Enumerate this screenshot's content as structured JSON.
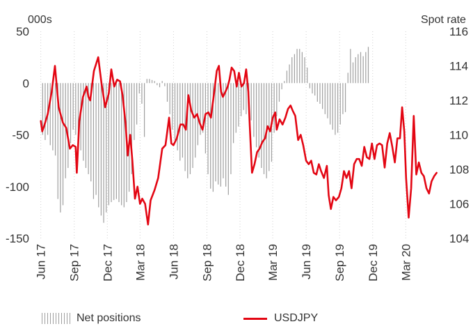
{
  "chart_data": {
    "type": "bar+line",
    "left_unit": "000s",
    "right_unit": "Spot rate",
    "x_tick_labels": [
      "Jun 17",
      "Sep 17",
      "Dec 17",
      "Mar 18",
      "Jun 18",
      "Sep 18",
      "Dec 18",
      "Mar 19",
      "Jun 19",
      "Sep 19",
      "Dec 19",
      "Mar 20"
    ],
    "y_left_ticks": [
      "50",
      "0",
      "-50",
      "-100",
      "-150"
    ],
    "y_right_ticks": [
      "116",
      "114",
      "112",
      "110",
      "108",
      "106",
      "104"
    ],
    "y_left_range": [
      -150,
      50
    ],
    "y_right_range": [
      104,
      116
    ],
    "grid": "vertical dotted",
    "legend_placement": "bottom",
    "series": [
      {
        "name": "Net positions",
        "kind": "bar",
        "axis": "left",
        "color": "#9e9e9e",
        "values": [
          -50,
          -55,
          -50,
          -60,
          -65,
          -70,
          -112,
          -125,
          -118,
          -92,
          -82,
          -58,
          -45,
          -50,
          -58,
          -65,
          -75,
          -82,
          -88,
          -95,
          -112,
          -108,
          -120,
          -128,
          -135,
          -125,
          -118,
          -115,
          -113,
          -112,
          -115,
          -118,
          -120,
          -115,
          -105,
          -88,
          -55,
          -40,
          -10,
          -20,
          -52,
          4,
          4,
          3,
          2,
          -2,
          -4,
          2,
          -3,
          -18,
          -30,
          -45,
          -55,
          -65,
          -75,
          -72,
          -85,
          -92,
          -88,
          -82,
          -72,
          -60,
          -50,
          -48,
          -68,
          -88,
          -102,
          -105,
          -95,
          -98,
          -100,
          -92,
          -100,
          -108,
          -88,
          -58,
          -48,
          -42,
          -32,
          -26,
          -30,
          -22,
          -36,
          -52,
          -62,
          -72,
          -82,
          -88,
          -92,
          -85,
          -76,
          -48,
          -32,
          -18,
          -6,
          2,
          12,
          18,
          25,
          28,
          33,
          33,
          30,
          25,
          15,
          -5,
          -10,
          -12,
          -18,
          -20,
          -25,
          -30,
          -34,
          -40,
          -45,
          -50,
          -48,
          -40,
          -30,
          -28,
          10,
          33,
          20,
          25,
          28,
          30,
          26,
          30,
          35
        ],
        "bar_start_date": "2017-06-06",
        "bar_interval_days": 7
      },
      {
        "name": "USDJPY",
        "kind": "line",
        "axis": "right",
        "color": "#e30613",
        "points": [
          [
            "2017-06-01",
            110.8
          ],
          [
            "2017-06-05",
            110.2
          ],
          [
            "2017-06-10",
            110.5
          ],
          [
            "2017-06-20",
            111.2
          ],
          [
            "2017-07-01",
            112.5
          ],
          [
            "2017-07-10",
            114.0
          ],
          [
            "2017-07-20",
            111.6
          ],
          [
            "2017-08-01",
            110.7
          ],
          [
            "2017-08-10",
            110.4
          ],
          [
            "2017-08-20",
            109.2
          ],
          [
            "2017-08-28",
            109.4
          ],
          [
            "2017-09-05",
            109.3
          ],
          [
            "2017-09-08",
            107.8
          ],
          [
            "2017-09-15",
            110.8
          ],
          [
            "2017-09-25",
            112.2
          ],
          [
            "2017-10-05",
            112.8
          ],
          [
            "2017-10-10",
            112.2
          ],
          [
            "2017-10-15",
            112.0
          ],
          [
            "2017-10-25",
            113.7
          ],
          [
            "2017-11-06",
            114.5
          ],
          [
            "2017-11-15",
            113.0
          ],
          [
            "2017-11-25",
            111.6
          ],
          [
            "2017-12-05",
            112.4
          ],
          [
            "2017-12-12",
            113.8
          ],
          [
            "2017-12-20",
            112.8
          ],
          [
            "2017-12-28",
            113.2
          ],
          [
            "2018-01-05",
            113.1
          ],
          [
            "2018-01-12",
            112.3
          ],
          [
            "2018-01-20",
            110.7
          ],
          [
            "2018-01-26",
            108.8
          ],
          [
            "2018-02-02",
            110.0
          ],
          [
            "2018-02-08",
            108.5
          ],
          [
            "2018-02-15",
            106.3
          ],
          [
            "2018-02-22",
            107.0
          ],
          [
            "2018-03-01",
            106.0
          ],
          [
            "2018-03-07",
            106.3
          ],
          [
            "2018-03-15",
            106.0
          ],
          [
            "2018-03-23",
            104.8
          ],
          [
            "2018-03-30",
            106.2
          ],
          [
            "2018-04-10",
            106.8
          ],
          [
            "2018-04-20",
            107.5
          ],
          [
            "2018-05-01",
            109.2
          ],
          [
            "2018-05-10",
            109.4
          ],
          [
            "2018-05-20",
            111.0
          ],
          [
            "2018-05-26",
            109.5
          ],
          [
            "2018-06-01",
            109.4
          ],
          [
            "2018-06-10",
            109.8
          ],
          [
            "2018-06-20",
            110.6
          ],
          [
            "2018-06-28",
            110.6
          ],
          [
            "2018-07-05",
            110.3
          ],
          [
            "2018-07-12",
            112.3
          ],
          [
            "2018-07-20",
            111.4
          ],
          [
            "2018-07-28",
            111.0
          ],
          [
            "2018-08-05",
            111.2
          ],
          [
            "2018-08-12",
            110.7
          ],
          [
            "2018-08-20",
            110.3
          ],
          [
            "2018-08-28",
            111.2
          ],
          [
            "2018-09-05",
            111.3
          ],
          [
            "2018-09-12",
            111.0
          ],
          [
            "2018-09-20",
            112.3
          ],
          [
            "2018-09-28",
            113.7
          ],
          [
            "2018-10-04",
            114.0
          ],
          [
            "2018-10-10",
            112.5
          ],
          [
            "2018-10-15",
            112.2
          ],
          [
            "2018-10-22",
            112.5
          ],
          [
            "2018-10-28",
            112.8
          ],
          [
            "2018-11-02",
            113.2
          ],
          [
            "2018-11-08",
            113.9
          ],
          [
            "2018-11-15",
            113.7
          ],
          [
            "2018-11-22",
            112.8
          ],
          [
            "2018-11-28",
            113.6
          ],
          [
            "2018-12-05",
            112.8
          ],
          [
            "2018-12-12",
            113.0
          ],
          [
            "2018-12-18",
            113.8
          ],
          [
            "2018-12-24",
            112.5
          ],
          [
            "2018-12-28",
            110.5
          ],
          [
            "2019-01-03",
            107.8
          ],
          [
            "2019-01-10",
            108.3
          ],
          [
            "2019-01-17",
            109.0
          ],
          [
            "2019-01-24",
            109.2
          ],
          [
            "2019-02-01",
            109.6
          ],
          [
            "2019-02-08",
            109.8
          ],
          [
            "2019-02-15",
            110.5
          ],
          [
            "2019-02-22",
            110.2
          ],
          [
            "2019-03-01",
            111.0
          ],
          [
            "2019-03-08",
            111.3
          ],
          [
            "2019-03-12",
            110.3
          ],
          [
            "2019-03-20",
            110.9
          ],
          [
            "2019-03-28",
            110.6
          ],
          [
            "2019-04-05",
            111.0
          ],
          [
            "2019-04-12",
            111.5
          ],
          [
            "2019-04-19",
            111.7
          ],
          [
            "2019-04-25",
            111.4
          ],
          [
            "2019-05-02",
            111.1
          ],
          [
            "2019-05-10",
            109.7
          ],
          [
            "2019-05-17",
            110.0
          ],
          [
            "2019-05-24",
            109.4
          ],
          [
            "2019-06-01",
            108.5
          ],
          [
            "2019-06-08",
            108.3
          ],
          [
            "2019-06-15",
            108.5
          ],
          [
            "2019-06-22",
            107.8
          ],
          [
            "2019-06-29",
            107.7
          ],
          [
            "2019-07-06",
            108.3
          ],
          [
            "2019-07-12",
            107.9
          ],
          [
            "2019-07-20",
            107.5
          ],
          [
            "2019-07-28",
            108.2
          ],
          [
            "2019-08-02",
            106.5
          ],
          [
            "2019-08-08",
            105.7
          ],
          [
            "2019-08-15",
            106.4
          ],
          [
            "2019-08-22",
            106.2
          ],
          [
            "2019-08-30",
            106.4
          ],
          [
            "2019-09-06",
            106.9
          ],
          [
            "2019-09-13",
            107.9
          ],
          [
            "2019-09-20",
            107.5
          ],
          [
            "2019-09-27",
            107.9
          ],
          [
            "2019-10-04",
            106.9
          ],
          [
            "2019-10-11",
            108.3
          ],
          [
            "2019-10-18",
            108.6
          ],
          [
            "2019-10-25",
            108.6
          ],
          [
            "2019-11-01",
            108.2
          ],
          [
            "2019-11-08",
            109.3
          ],
          [
            "2019-11-15",
            108.7
          ],
          [
            "2019-11-22",
            108.6
          ],
          [
            "2019-11-29",
            109.5
          ],
          [
            "2019-12-06",
            108.6
          ],
          [
            "2019-12-13",
            109.4
          ],
          [
            "2019-12-20",
            109.5
          ],
          [
            "2019-12-27",
            109.4
          ],
          [
            "2020-01-03",
            108.1
          ],
          [
            "2020-01-10",
            109.5
          ],
          [
            "2020-01-17",
            110.1
          ],
          [
            "2020-01-24",
            109.3
          ],
          [
            "2020-01-31",
            108.4
          ],
          [
            "2020-02-07",
            109.8
          ],
          [
            "2020-02-14",
            109.8
          ],
          [
            "2020-02-20",
            111.6
          ],
          [
            "2020-02-26",
            110.2
          ],
          [
            "2020-03-02",
            107.5
          ],
          [
            "2020-03-09",
            105.2
          ],
          [
            "2020-03-16",
            106.9
          ],
          [
            "2020-03-23",
            111.1
          ],
          [
            "2020-03-30",
            107.7
          ],
          [
            "2020-04-06",
            108.4
          ],
          [
            "2020-04-13",
            107.8
          ],
          [
            "2020-04-20",
            107.6
          ],
          [
            "2020-04-27",
            106.9
          ],
          [
            "2020-05-04",
            106.6
          ],
          [
            "2020-05-11",
            107.3
          ],
          [
            "2020-05-18",
            107.6
          ],
          [
            "2020-05-25",
            107.8
          ]
        ]
      }
    ]
  }
}
